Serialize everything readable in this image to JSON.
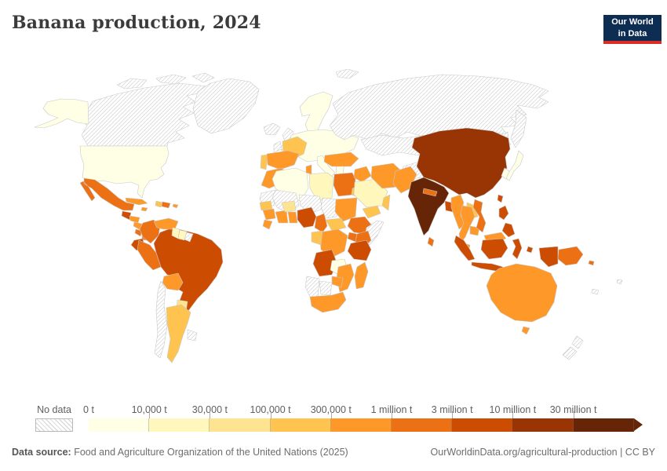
{
  "header": {
    "title": "Banana production, 2024"
  },
  "logo": {
    "line1": "Our World",
    "line2": "in Data",
    "bg_color": "#0d2d52",
    "bar_color": "#dc2d25"
  },
  "legend": {
    "no_data_label": "No data",
    "bins": [
      {
        "label": "0 t",
        "color": "#ffffe5",
        "range": "0 – 10,000 t"
      },
      {
        "label": "10,000 t",
        "color": "#fff7bc",
        "range": "10,000 – 30,000 t"
      },
      {
        "label": "30,000 t",
        "color": "#fee391",
        "range": "30,000 – 100,000 t"
      },
      {
        "label": "100,000 t",
        "color": "#fec44f",
        "range": "100,000 – 300,000 t"
      },
      {
        "label": "300,000 t",
        "color": "#fe9929",
        "range": "300,000 t – 1 million t"
      },
      {
        "label": "1 million t",
        "color": "#ec7014",
        "range": "1 – 3 million t"
      },
      {
        "label": "3 million t",
        "color": "#cc4c02",
        "range": "3 – 10 million t"
      },
      {
        "label": "10 million t",
        "color": "#993404",
        "range": "10 – 30 million t"
      },
      {
        "label": "30 million t",
        "color": "#662506",
        "range": "30+ million t"
      }
    ]
  },
  "footer": {
    "source_prefix": "Data source:",
    "source": " Food and Agriculture Organization of the United Nations (2025)",
    "credit": "OurWorldinData.org/agricultural-production | CC BY"
  },
  "chart_data": {
    "type": "choropleth-map",
    "title": "Banana production, 2024",
    "unit": "tonnes (t)",
    "no_data_style": "gray diagonal hatching",
    "bin_edges_t": [
      0,
      10000,
      30000,
      100000,
      300000,
      1000000,
      3000000,
      10000000,
      30000000
    ],
    "countries": {
      "United States": 0,
      "Canada": -1,
      "Greenland": -1,
      "Mexico": 5,
      "Guatemala": 6,
      "Honduras": 4,
      "Nicaragua": 4,
      "Costa Rica": 5,
      "Panama": 5,
      "Cuba": 4,
      "Jamaica": 4,
      "Haiti": 3,
      "Dominican Republic": 5,
      "Puerto Rico": 4,
      "Colombia": 5,
      "Venezuela": 4,
      "Guyana": 1,
      "Suriname": 1,
      "French Guiana": -1,
      "Ecuador": 6,
      "Peru": 5,
      "Brazil": 6,
      "Bolivia": 4,
      "Paraguay": 2,
      "Argentina": 3,
      "Chile": -1,
      "Uruguay": -1,
      "Iceland": -1,
      "United Kingdom": -1,
      "Ireland": -1,
      "Scandinavia": 0,
      "Europe (other)": 0,
      "France": 3,
      "Portugal": 3,
      "Spain": 4,
      "Italy": 0,
      "Greece": 0,
      "Russia": -1,
      "Svalbard": -1,
      "Kazakhstan": -1,
      "Mongolia": -1,
      "Morocco": 4,
      "Algeria": 0,
      "Tunisia": 4,
      "Libya": 1,
      "Egypt": 5,
      "Mauritania": -1,
      "Mali": -1,
      "Niger": -1,
      "Chad": -1,
      "Sudan": 4,
      "Ethiopia": 5,
      "Somalia": -1,
      "Senegal": 3,
      "Guinea": 4,
      "Liberia": 4,
      "Côte d'Ivoire": 4,
      "Ghana": 4,
      "Burkina Faso": 2,
      "Nigeria": 6,
      "Cameroon": 5,
      "Central African Republic": 3,
      "Democratic Republic of Congo": 4,
      "Congo": 3,
      "Uganda": 5,
      "Kenya": 5,
      "Tanzania": 6,
      "Angola": 6,
      "Zambia": 0,
      "Mozambique": 4,
      "Zimbabwe": 4,
      "Namibia": -1,
      "Botswana": -1,
      "South Africa": 4,
      "Madagascar": 4,
      "Turkey": 4,
      "Israel": 3,
      "Iraq": 4,
      "Saudi Arabia": 1,
      "Yemen": 3,
      "Oman": 3,
      "Iran": 4,
      "Afghanistan": -1,
      "Pakistan": 4,
      "India": 8,
      "Nepal": 5,
      "Sri Lanka": 5,
      "Bangladesh": 6,
      "China": 7,
      "Taiwan": 6,
      "Japan": 0,
      "South Korea": 0,
      "Myanmar": 4,
      "Thailand": 4,
      "Laos": 3,
      "Cambodia": 4,
      "Vietnam": 5,
      "Malaysia": 4,
      "Indonesia": 6,
      "Philippines": 6,
      "Papua New Guinea": 5,
      "Solomon Islands": 5,
      "Fiji": -1,
      "New Caledonia": -1,
      "Australia": 4,
      "New Zealand": -1
    }
  }
}
